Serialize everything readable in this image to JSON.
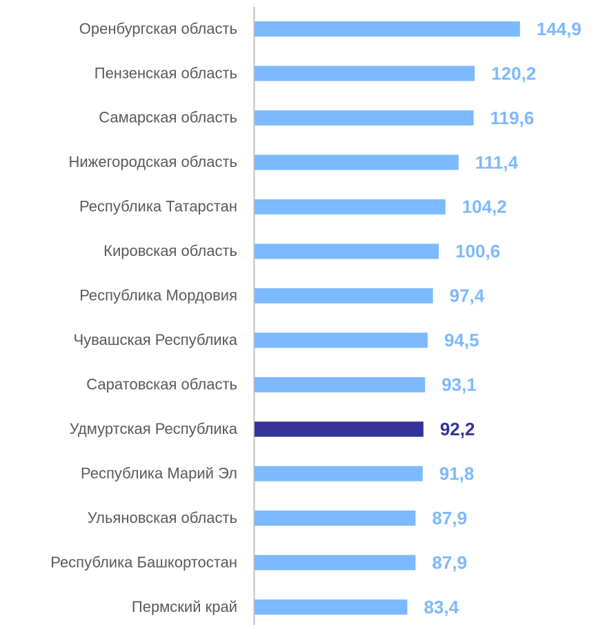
{
  "chart_data": {
    "type": "barh",
    "categories": [
      "Оренбургская область",
      "Пензенская область",
      "Самарская область",
      "Нижегородская область",
      "Республика Татарстан",
      "Кировская область",
      "Республика Мордовия",
      "Чувашская Республика",
      "Саратовская область",
      "Удмуртская Республика",
      "Республика Марий Эл",
      "Ульяновская область",
      "Республика Башкортостан",
      "Пермский край"
    ],
    "values": [
      144.9,
      120.2,
      119.6,
      111.4,
      104.2,
      100.6,
      97.4,
      94.5,
      93.1,
      92.2,
      91.8,
      87.9,
      87.9,
      83.4
    ],
    "value_labels": [
      "144,9",
      "120,2",
      "119,6",
      "111,4",
      "104,2",
      "100,6",
      "97,4",
      "94,5",
      "93,1",
      "92,2",
      "91,8",
      "87,9",
      "87,9",
      "83,4"
    ],
    "colors": [
      "#7cb9ff",
      "#7cb9ff",
      "#7cb9ff",
      "#7cb9ff",
      "#7cb9ff",
      "#7cb9ff",
      "#7cb9ff",
      "#7cb9ff",
      "#7cb9ff",
      "#333399",
      "#7cb9ff",
      "#7cb9ff",
      "#7cb9ff",
      "#7cb9ff"
    ],
    "xlim": [
      0,
      180
    ]
  }
}
